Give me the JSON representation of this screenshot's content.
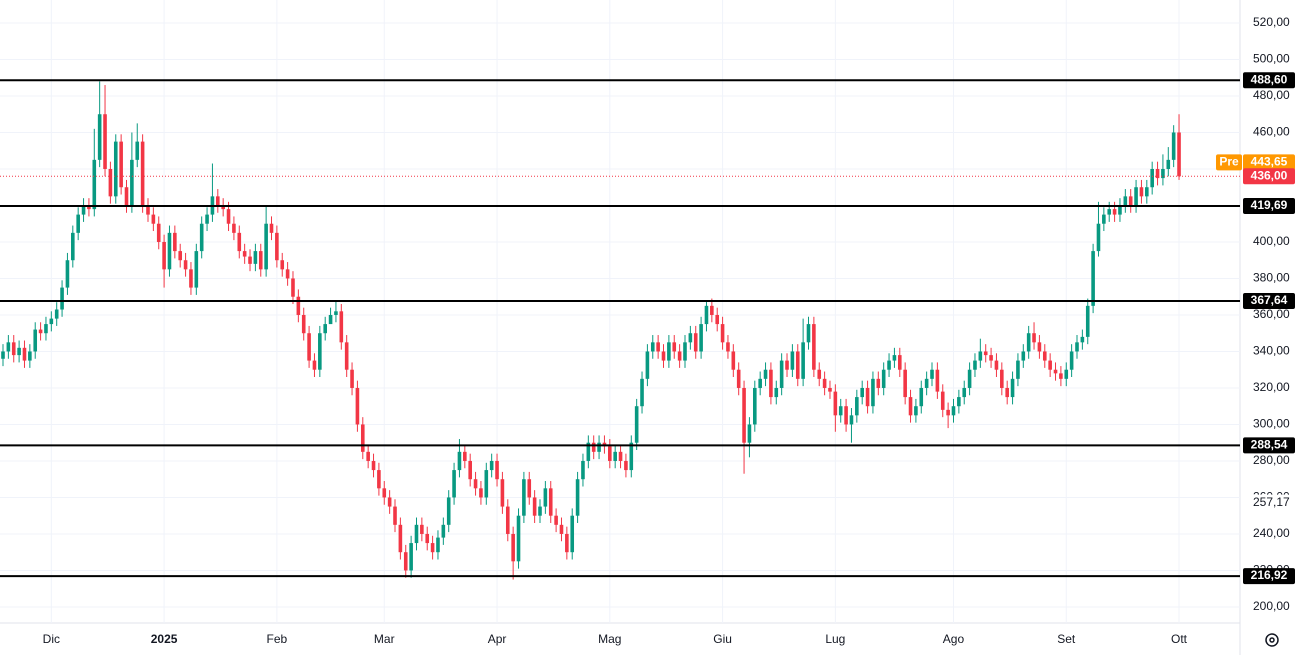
{
  "chart_data": {
    "type": "candlestick",
    "categories": [
      null,
      null,
      null,
      null,
      null,
      null,
      null,
      null,
      null,
      "Dic",
      null,
      null,
      null,
      null,
      null,
      null,
      null,
      null,
      null,
      null,
      null,
      null,
      null,
      null,
      null,
      null,
      null,
      null,
      null,
      null,
      "2025",
      null,
      null,
      null,
      null,
      null,
      null,
      null,
      null,
      null,
      null,
      null,
      null,
      null,
      null,
      null,
      null,
      null,
      null,
      null,
      null,
      "Feb",
      null,
      null,
      null,
      null,
      null,
      null,
      null,
      null,
      null,
      null,
      null,
      null,
      null,
      null,
      null,
      null,
      null,
      null,
      null,
      "Mar",
      null,
      null,
      null,
      null,
      null,
      null,
      null,
      null,
      null,
      null,
      null,
      null,
      null,
      null,
      null,
      null,
      null,
      null,
      null,
      null,
      "Apr",
      null,
      null,
      null,
      null,
      null,
      null,
      null,
      null,
      null,
      null,
      null,
      null,
      null,
      null,
      null,
      null,
      null,
      null,
      null,
      null,
      "Mag",
      null,
      null,
      null,
      null,
      null,
      null,
      null,
      null,
      null,
      null,
      null,
      null,
      null,
      null,
      null,
      null,
      null,
      null,
      null,
      null,
      "Giu",
      null,
      null,
      null,
      null,
      null,
      null,
      null,
      null,
      null,
      null,
      null,
      null,
      null,
      null,
      null,
      null,
      null,
      null,
      null,
      null,
      "Lug",
      null,
      null,
      null,
      null,
      null,
      null,
      null,
      null,
      null,
      null,
      null,
      null,
      null,
      null,
      null,
      null,
      null,
      null,
      null,
      null,
      null,
      "Ago",
      null,
      null,
      null,
      null,
      null,
      null,
      null,
      null,
      null,
      null,
      null,
      null,
      null,
      null,
      null,
      null,
      null,
      null,
      null,
      null,
      "Set",
      null,
      null,
      null,
      null,
      null,
      null,
      null,
      null,
      null,
      null,
      null,
      null,
      null,
      null,
      null,
      null,
      null,
      null,
      null,
      null,
      "Ott"
    ],
    "open": [
      336,
      340,
      345,
      338,
      342,
      335,
      340,
      352,
      350,
      355,
      358,
      363,
      375,
      390,
      405,
      415,
      420,
      418,
      445,
      470,
      440,
      425,
      455,
      430,
      420,
      445,
      455,
      420,
      415,
      410,
      400,
      385,
      405,
      395,
      390,
      385,
      375,
      395,
      410,
      415,
      425,
      420,
      418,
      410,
      405,
      395,
      392,
      388,
      395,
      385,
      410,
      405,
      390,
      385,
      380,
      370,
      360,
      350,
      335,
      330,
      350,
      355,
      360,
      362,
      345,
      330,
      320,
      300,
      285,
      280,
      275,
      265,
      260,
      255,
      245,
      230,
      220,
      235,
      245,
      240,
      235,
      230,
      238,
      245,
      260,
      275,
      285,
      280,
      270,
      265,
      260,
      275,
      280,
      270,
      255,
      240,
      225,
      250,
      270,
      260,
      250,
      255,
      265,
      250,
      245,
      240,
      230,
      250,
      270,
      280,
      290,
      285,
      290,
      288,
      280,
      285,
      280,
      275,
      290,
      310,
      325,
      340,
      345,
      340,
      335,
      345,
      340,
      335,
      345,
      350,
      340,
      355,
      365,
      360,
      355,
      345,
      340,
      330,
      320,
      290,
      300,
      320,
      325,
      330,
      315,
      320,
      335,
      330,
      340,
      325,
      345,
      355,
      330,
      325,
      320,
      318,
      305,
      310,
      300,
      305,
      315,
      320,
      310,
      325,
      320,
      330,
      335,
      338,
      330,
      315,
      305,
      310,
      320,
      325,
      330,
      318,
      308,
      305,
      310,
      315,
      320,
      330,
      335,
      340,
      338,
      335,
      330,
      320,
      315,
      325,
      335,
      340,
      350,
      345,
      340,
      335,
      330,
      328,
      325,
      330,
      340,
      345,
      348,
      365,
      395,
      410,
      415,
      418,
      415,
      420,
      425,
      420,
      430,
      425,
      430,
      440,
      435,
      440,
      445,
      460
    ],
    "high": [
      344,
      349,
      349,
      346,
      346,
      344,
      356,
      356,
      359,
      362,
      367,
      379,
      394,
      409,
      419,
      424,
      424,
      462,
      488,
      486,
      444,
      459,
      459,
      434,
      460,
      465,
      459,
      424,
      419,
      414,
      404,
      409,
      409,
      399,
      394,
      389,
      399,
      414,
      419,
      443,
      429,
      424,
      422,
      414,
      409,
      399,
      396,
      399,
      399,
      420,
      414,
      409,
      394,
      389,
      384,
      374,
      364,
      354,
      339,
      354,
      359,
      364,
      368,
      366,
      349,
      334,
      324,
      304,
      289,
      284,
      279,
      269,
      264,
      259,
      249,
      234,
      239,
      249,
      249,
      244,
      239,
      242,
      249,
      264,
      279,
      292,
      289,
      284,
      274,
      269,
      279,
      284,
      284,
      274,
      259,
      244,
      254,
      274,
      274,
      264,
      259,
      269,
      269,
      254,
      249,
      244,
      254,
      274,
      284,
      294,
      294,
      294,
      294,
      292,
      289,
      289,
      284,
      294,
      314,
      329,
      344,
      349,
      349,
      344,
      349,
      349,
      344,
      349,
      354,
      354,
      359,
      368,
      369,
      364,
      359,
      349,
      344,
      334,
      324,
      304,
      324,
      329,
      334,
      334,
      324,
      339,
      339,
      344,
      344,
      358,
      359,
      359,
      334,
      329,
      324,
      322,
      314,
      314,
      309,
      319,
      324,
      324,
      329,
      329,
      334,
      339,
      342,
      342,
      334,
      319,
      314,
      324,
      329,
      334,
      334,
      322,
      312,
      314,
      319,
      324,
      334,
      339,
      347,
      344,
      342,
      339,
      334,
      324,
      329,
      339,
      344,
      354,
      356,
      349,
      344,
      339,
      334,
      332,
      334,
      344,
      349,
      352,
      369,
      399,
      422,
      419,
      422,
      422,
      424,
      429,
      429,
      434,
      434,
      434,
      444,
      444,
      448,
      452,
      464,
      470
    ],
    "low": [
      332,
      336,
      334,
      334,
      331,
      331,
      336,
      346,
      346,
      351,
      354,
      359,
      371,
      386,
      401,
      411,
      414,
      414,
      441,
      436,
      421,
      421,
      426,
      416,
      416,
      441,
      416,
      411,
      406,
      396,
      375,
      381,
      391,
      386,
      381,
      371,
      371,
      391,
      406,
      411,
      416,
      414,
      406,
      401,
      391,
      388,
      384,
      384,
      381,
      381,
      401,
      386,
      381,
      376,
      366,
      356,
      346,
      331,
      326,
      326,
      346,
      356,
      356,
      341,
      326,
      316,
      296,
      281,
      276,
      271,
      261,
      256,
      251,
      241,
      226,
      216,
      216,
      231,
      236,
      231,
      226,
      226,
      234,
      241,
      256,
      271,
      276,
      266,
      261,
      256,
      256,
      271,
      266,
      251,
      236,
      215,
      221,
      246,
      256,
      246,
      246,
      251,
      246,
      241,
      236,
      226,
      226,
      246,
      266,
      276,
      281,
      281,
      284,
      276,
      276,
      276,
      271,
      271,
      286,
      306,
      321,
      336,
      336,
      331,
      331,
      336,
      331,
      331,
      341,
      336,
      336,
      351,
      356,
      351,
      341,
      336,
      326,
      316,
      273,
      282,
      296,
      316,
      321,
      311,
      311,
      316,
      326,
      326,
      321,
      321,
      341,
      326,
      321,
      316,
      314,
      296,
      301,
      296,
      290,
      301,
      311,
      306,
      306,
      316,
      316,
      326,
      331,
      326,
      311,
      301,
      301,
      306,
      316,
      321,
      314,
      304,
      298,
      301,
      306,
      311,
      316,
      326,
      331,
      334,
      331,
      326,
      316,
      311,
      311,
      321,
      331,
      336,
      341,
      336,
      331,
      326,
      324,
      321,
      321,
      326,
      336,
      341,
      344,
      361,
      392,
      406,
      411,
      411,
      411,
      416,
      416,
      416,
      421,
      421,
      426,
      431,
      431,
      436,
      441,
      434
    ],
    "close": [
      340,
      345,
      338,
      342,
      335,
      340,
      352,
      350,
      355,
      358,
      363,
      375,
      390,
      405,
      415,
      420,
      418,
      445,
      470,
      440,
      425,
      455,
      430,
      420,
      445,
      455,
      420,
      415,
      410,
      400,
      385,
      405,
      395,
      390,
      385,
      375,
      395,
      410,
      415,
      425,
      420,
      418,
      410,
      405,
      395,
      392,
      388,
      395,
      385,
      410,
      405,
      390,
      385,
      380,
      370,
      360,
      350,
      335,
      330,
      350,
      355,
      360,
      362,
      345,
      330,
      320,
      300,
      285,
      280,
      275,
      265,
      260,
      255,
      245,
      230,
      220,
      235,
      245,
      240,
      235,
      230,
      238,
      245,
      260,
      275,
      285,
      280,
      270,
      265,
      260,
      275,
      280,
      270,
      255,
      240,
      225,
      250,
      270,
      260,
      250,
      255,
      265,
      250,
      245,
      240,
      230,
      250,
      270,
      280,
      290,
      285,
      290,
      288,
      280,
      285,
      280,
      275,
      290,
      310,
      325,
      340,
      345,
      340,
      335,
      345,
      340,
      335,
      345,
      350,
      340,
      355,
      365,
      360,
      355,
      345,
      340,
      330,
      320,
      290,
      300,
      320,
      325,
      330,
      315,
      320,
      335,
      330,
      340,
      325,
      345,
      355,
      330,
      325,
      320,
      318,
      305,
      310,
      300,
      305,
      315,
      320,
      310,
      325,
      320,
      330,
      335,
      338,
      330,
      315,
      305,
      310,
      320,
      325,
      330,
      318,
      308,
      305,
      310,
      315,
      320,
      330,
      335,
      340,
      338,
      335,
      330,
      320,
      315,
      325,
      335,
      340,
      350,
      345,
      340,
      335,
      330,
      328,
      325,
      330,
      340,
      345,
      348,
      365,
      395,
      410,
      415,
      418,
      415,
      420,
      425,
      420,
      430,
      425,
      430,
      440,
      435,
      440,
      445,
      460,
      436
    ],
    "up_color": "#089981",
    "down_color": "#f23645",
    "ylim": [
      191.2,
      532.6
    ],
    "yticks": [
      {
        "value": 200,
        "label": "200,00"
      },
      {
        "value": 220,
        "label": "220,00"
      },
      {
        "value": 240,
        "label": "240,00"
      },
      {
        "value": 260,
        "label": "260,00"
      },
      {
        "value": 280,
        "label": "280,00"
      },
      {
        "value": 300,
        "label": "300,00"
      },
      {
        "value": 320,
        "label": "320,00"
      },
      {
        "value": 340,
        "label": "340,00"
      },
      {
        "value": 360,
        "label": "360,00"
      },
      {
        "value": 380,
        "label": "380,00"
      },
      {
        "value": 400,
        "label": "400,00"
      },
      {
        "value": 420,
        "label": "420,00"
      },
      {
        "value": 440,
        "label": "440,00"
      },
      {
        "value": 460,
        "label": "460,00"
      },
      {
        "value": 480,
        "label": "480,00"
      },
      {
        "value": 500,
        "label": "500,00"
      },
      {
        "value": 520,
        "label": "520,00"
      }
    ],
    "grid": true,
    "levels": [
      {
        "value": 488.6,
        "label": "488,60"
      },
      {
        "value": 419.69,
        "label": "419,69"
      },
      {
        "value": 367.64,
        "label": "367,64"
      },
      {
        "value": 288.54,
        "label": "288,54"
      },
      {
        "value": 216.92,
        "label": "216,92"
      }
    ],
    "level_color": "#000000",
    "marker_level": {
      "value": 257.17,
      "label": "257,17"
    },
    "pre_market": {
      "label": "Pre",
      "value": 443.65,
      "value_label": "443,65",
      "color": "#ff9800"
    },
    "last": {
      "value": 436,
      "label": "436,00",
      "color": "#f23645"
    }
  }
}
